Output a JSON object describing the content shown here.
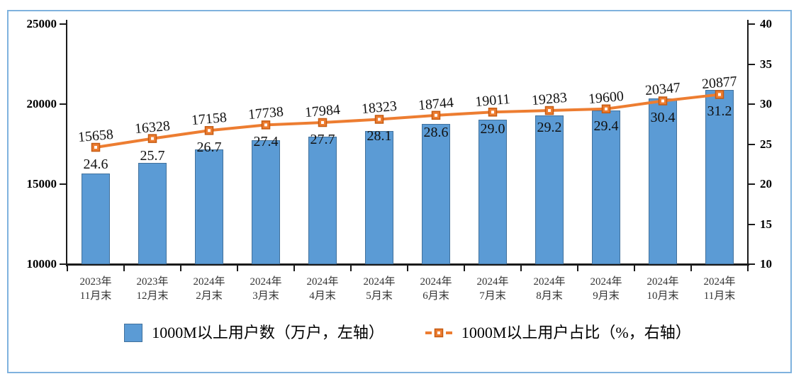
{
  "chart_data": {
    "type": "bar",
    "categories": [
      "2023年\n11月末",
      "2023年\n12月末",
      "2024年\n2月末",
      "2024年\n3月末",
      "2024年\n4月末",
      "2024年\n5月末",
      "2024年\n6月末",
      "2024年\n7月末",
      "2024年\n8月末",
      "2024年\n9月末",
      "2024年\n10月末",
      "2024年\n11月末"
    ],
    "series": [
      {
        "name": "1000M以上用户数（万户，左轴）",
        "type": "bar",
        "axis": "left",
        "values": [
          15658,
          16328,
          17158,
          17738,
          17984,
          18323,
          18744,
          19011,
          19283,
          19600,
          20347,
          20877
        ],
        "labels": [
          "15658",
          "16328",
          "17158",
          "17738",
          "17984",
          "18323",
          "18744",
          "19011",
          "19283",
          "19600",
          "20347",
          "20877"
        ]
      },
      {
        "name": "1000M以上用户占比（%，右轴）",
        "type": "line",
        "axis": "right",
        "values": [
          24.6,
          25.7,
          26.7,
          27.4,
          27.7,
          28.1,
          28.6,
          29.0,
          29.2,
          29.4,
          30.4,
          31.2
        ],
        "labels": [
          "24.6",
          "25.7",
          "26.7",
          "27.4",
          "27.7",
          "28.1",
          "28.6",
          "29.0",
          "29.2",
          "29.4",
          "30.4",
          "31.2"
        ]
      }
    ],
    "left_axis": {
      "min": 10000,
      "max": 25000,
      "ticks": [
        10000,
        15000,
        20000,
        25000
      ]
    },
    "right_axis": {
      "min": 10,
      "max": 40,
      "ticks": [
        10,
        15,
        20,
        25,
        30,
        35,
        40
      ]
    },
    "grid": false,
    "legend_position": "bottom",
    "title": "",
    "colors": {
      "bar_fill": "#5B9BD5",
      "bar_border": "#41719C",
      "line": "#ED7D31",
      "marker_border": "#C55A11",
      "marker_center": "#FFFFFF",
      "axis": "#1A1A1A",
      "frame_border": "#7FB2DE"
    }
  }
}
